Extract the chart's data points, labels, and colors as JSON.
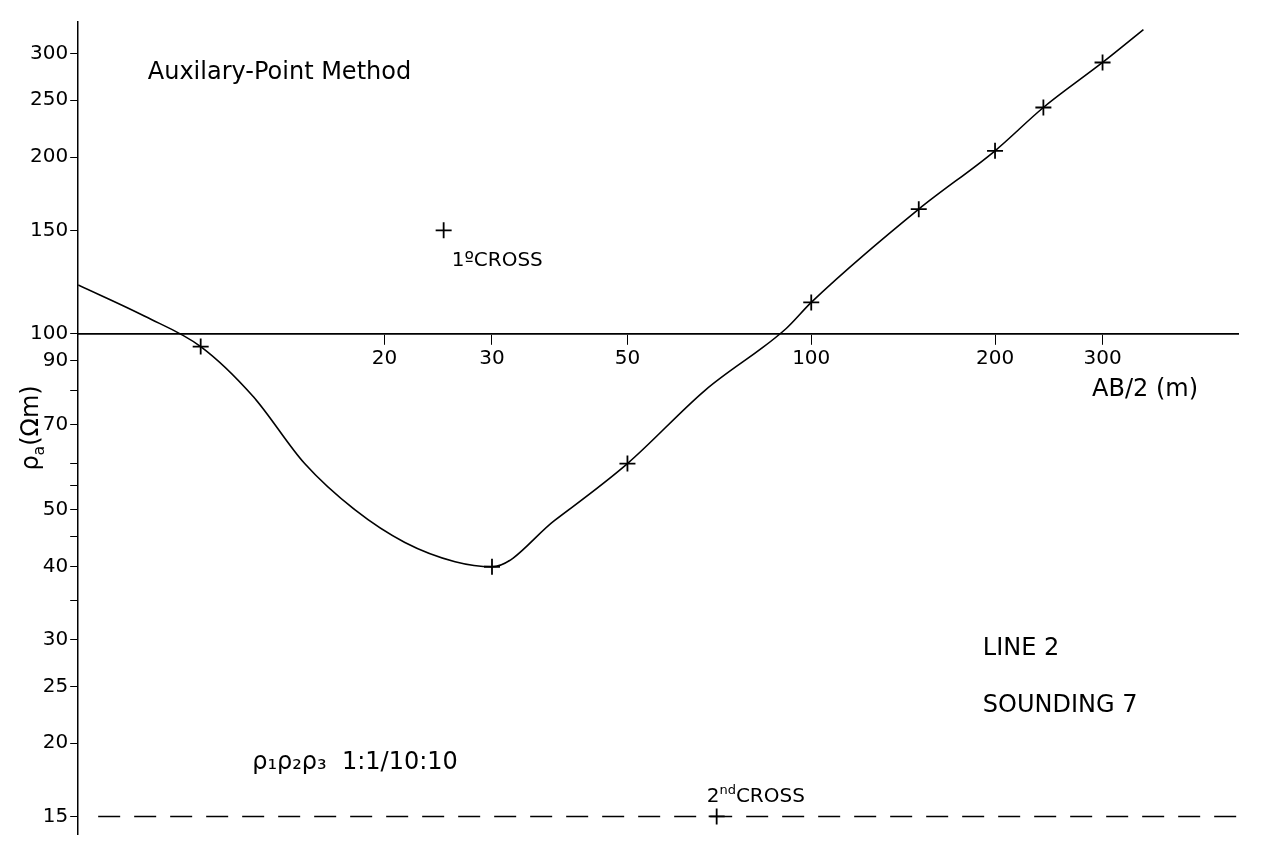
{
  "chart_data": {
    "type": "scatter",
    "xlabel": "AB/2 (m)",
    "ylabel": "ρ$_{a}$(Ωm)",
    "log": "xy",
    "grid": false,
    "legend": false,
    "xlim": [
      6.3,
      500
    ],
    "ylim": [
      14,
      340
    ],
    "xticks": [
      20,
      30,
      50,
      100,
      200,
      300
    ],
    "yticks": [
      15,
      20,
      25,
      30,
      {
        "value": 35,
        "label": null
      },
      40,
      {
        "value": 45,
        "label": null
      },
      50,
      {
        "value": 55,
        "label": null
      },
      {
        "value": 60,
        "label": null
      },
      70,
      {
        "value": 80,
        "label": null
      },
      90,
      100,
      150,
      200,
      250,
      300
    ],
    "series": [
      {
        "type": "line",
        "color": "#000000",
        "marker": "none",
        "x": [
          6.3,
          8.1,
          10,
          12.2,
          14.8,
          17.9,
          21.6,
          26.1,
          30,
          38,
          50,
          67,
          91,
          100,
          150,
          200,
          240,
          300,
          350
        ],
        "values": [
          121,
          107,
          95,
          78,
          60,
          50,
          44,
          40.8,
          40,
          48,
          60,
          80,
          102,
          113,
          163,
          205,
          243,
          290,
          330
        ]
      },
      {
        "type": "scatter",
        "color": "#000000",
        "marker": "cross",
        "x": [
          10,
          30,
          50,
          100,
          150,
          200,
          240,
          300
        ],
        "values": [
          95,
          40,
          60,
          113,
          163,
          205,
          243,
          290
        ]
      },
      {
        "type": "scatter",
        "color": "#000000",
        "marker": "cross",
        "x": [
          25,
          70
        ],
        "values": [
          150,
          15
        ]
      }
    ],
    "ref_lines": [
      {
        "axis": "y",
        "value": 15,
        "line_style": "dashed",
        "color": "#000000"
      }
    ],
    "annotations": [
      "Auxilary-Point Method",
      {
        "text": "1ºCROSS",
        "x": 25,
        "y": 150
      },
      {
        "text": "2$^{nd}$CROSS",
        "x": 70,
        "y": 15
      },
      "ρ₁ρ₂ρ₃  1:1/10:10",
      "LINE 2",
      "SOUNDING 7"
    ]
  }
}
